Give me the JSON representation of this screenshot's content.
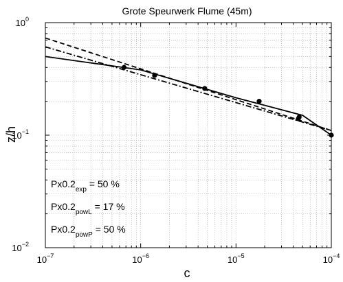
{
  "chart_data": {
    "type": "line",
    "title": "Grote Speurwerk Flume (45m)",
    "xlabel": "c",
    "ylabel": "z/h",
    "xscale": "log",
    "yscale": "log",
    "xlim": [
      1e-07,
      0.0001
    ],
    "ylim": [
      0.01,
      1
    ],
    "grid": true,
    "x_ticks": [
      {
        "value": 1e-07,
        "base": "10",
        "exp": "−7"
      },
      {
        "value": 1e-06,
        "base": "10",
        "exp": "−6"
      },
      {
        "value": 1e-05,
        "base": "10",
        "exp": "−5"
      },
      {
        "value": 0.0001,
        "base": "10",
        "exp": "−4"
      }
    ],
    "y_ticks": [
      {
        "value": 0.01,
        "base": "10",
        "exp": "−2"
      },
      {
        "value": 0.1,
        "base": "10",
        "exp": "−1"
      },
      {
        "value": 1,
        "base": "10",
        "exp": "0"
      }
    ],
    "series": [
      {
        "style": "markers",
        "color": "#000000",
        "points": [
          {
            "x": 6.7e-07,
            "y": 0.4
          },
          {
            "x": 1.4e-06,
            "y": 0.34
          },
          {
            "x": 4.7e-06,
            "y": 0.26
          },
          {
            "x": 1.75e-05,
            "y": 0.2
          },
          {
            "x": 4.6e-05,
            "y": 0.145
          },
          {
            "x": 4.5e-05,
            "y": 0.14
          },
          {
            "x": 0.0001,
            "y": 0.1
          }
        ]
      },
      {
        "style": "solid",
        "color": "#000000",
        "points": [
          {
            "x": 1e-07,
            "y": 0.5
          },
          {
            "x": 1e-06,
            "y": 0.38
          },
          {
            "x": 1e-05,
            "y": 0.215
          },
          {
            "x": 5e-05,
            "y": 0.15
          },
          {
            "x": 0.0001,
            "y": 0.1
          }
        ]
      },
      {
        "style": "dashed",
        "color": "#000000",
        "points": [
          {
            "x": 1e-07,
            "y": 0.73
          },
          {
            "x": 0.0001,
            "y": 0.11
          }
        ]
      },
      {
        "style": "dashdot",
        "color": "#000000",
        "points": [
          {
            "x": 1e-07,
            "y": 0.61
          },
          {
            "x": 0.0001,
            "y": 0.11
          }
        ]
      }
    ],
    "annotations": [
      {
        "prefix": "Px0.2",
        "sub": "exp",
        "suffix": " = 50 %"
      },
      {
        "prefix": "Px0.2",
        "sub": "powL",
        "suffix": " = 17 %"
      },
      {
        "prefix": "Px0.2",
        "sub": "powP",
        "suffix": " = 50 %"
      }
    ]
  }
}
